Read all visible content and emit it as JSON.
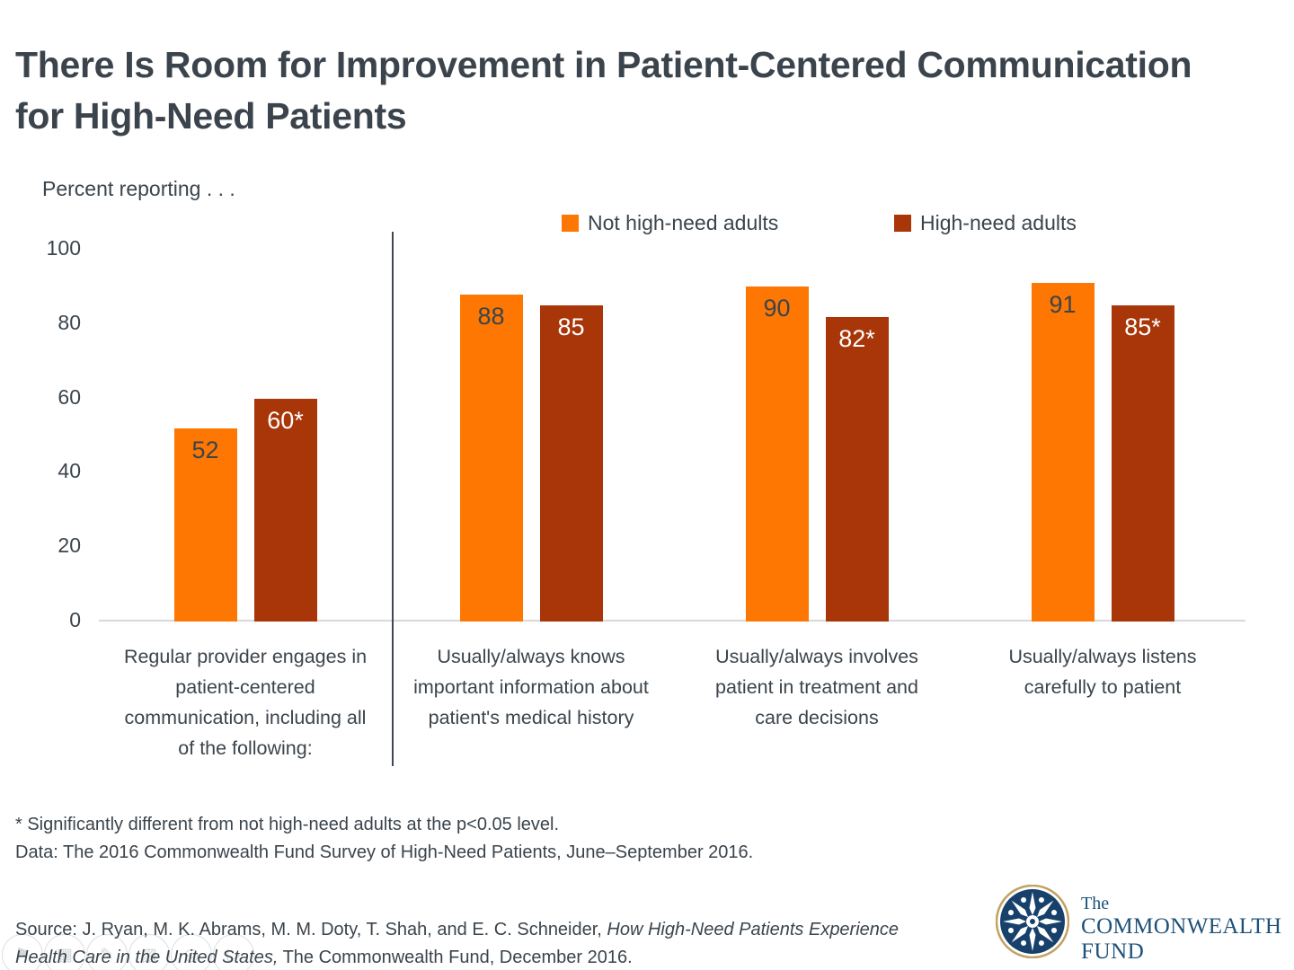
{
  "slide": {
    "title_line1": "There Is Room for Improvement in Patient-Centered Communication",
    "title_line2": "for High-Need Patients",
    "percent_label": "Percent reporting . . .",
    "footnote_line1": "* Significantly different from not high-need adults at the p<0.05 level.",
    "footnote_line2": "Data: The 2016 Commonwealth Fund Survey of High-Need Patients, June–September 2016.",
    "source": {
      "prefix": "Source: J. Ryan, M. K. Abrams, M. M. Doty, T. Shah, and E. C. Schneider, ",
      "italic": "How High-Need Patients Experience Health Care in the United States,",
      "suffix": " The Commonwealth Fund, December 2016."
    },
    "logo": {
      "the": "The",
      "commonwealth": "COMMONWEALTH",
      "fund": "FUND"
    }
  },
  "colors": {
    "not_high_need_orange": "#FD7702",
    "high_need_rust": "#A83608",
    "text_dark": "#3B444C",
    "axis_line_gray": "#D9D9D9",
    "divider_dark": "#3F474F",
    "logo_navy": "#17416B",
    "logo_text_navy": "#1D5179",
    "logo_gold": "#C2A161"
  },
  "chart_data": {
    "type": "bar",
    "title": "There Is Room for Improvement in Patient-Centered Communication for High-Need Patients",
    "ylabel": "Percent reporting . . .",
    "xlabel": "",
    "ylim": [
      0,
      100
    ],
    "yticks": [
      0,
      20,
      40,
      60,
      80,
      100
    ],
    "grid": false,
    "legend_position": "top",
    "categories": [
      "Regular provider engages in patient-centered communication, including all of the following:",
      "Usually/always knows important information about patient's medical history",
      "Usually/always involves patient in treatment and care decisions",
      "Usually/always listens carefully to patient"
    ],
    "series": [
      {
        "name": "Not high-need adults",
        "color": "#FD7702",
        "values": [
          52,
          88,
          90,
          91
        ],
        "value_labels": [
          "52",
          "88",
          "90",
          "91"
        ],
        "label_color": "#3B444C"
      },
      {
        "name": "High-need adults",
        "color": "#A83608",
        "values": [
          60,
          85,
          82,
          85
        ],
        "value_labels": [
          "60*",
          "85",
          "82*",
          "85*"
        ],
        "label_color": "#FFFFFF"
      }
    ],
    "annotations": {
      "divider_after_first_category": true,
      "asterisk_meaning": "Significantly different from not high-need adults at the p<0.05 level"
    }
  },
  "placeholder_icons": [
    {
      "name": "placeholder-flag-icon",
      "glyph": "⚑"
    },
    {
      "name": "placeholder-table-icon",
      "glyph": "▦"
    },
    {
      "name": "placeholder-pencil-icon",
      "glyph": "✎"
    },
    {
      "name": "placeholder-picture-icon",
      "glyph": "▨"
    },
    {
      "name": "placeholder-search-icon",
      "glyph": "◎"
    },
    {
      "name": "placeholder-media-icon",
      "glyph": "▷"
    }
  ]
}
